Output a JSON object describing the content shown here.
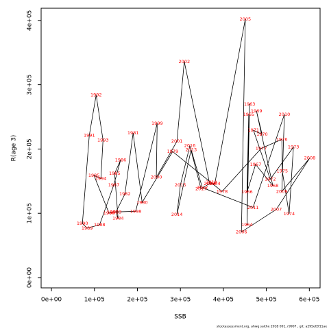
{
  "chart_data": {
    "type": "scatter",
    "xlabel": "SSB",
    "ylabel": "R(age 3)",
    "footnote": "stockassessment.org, ahwg saithe 2018 001, r9907 , git: a295ef2f11ae",
    "point_labels": [
      "1963",
      "1964",
      "1965",
      "1966",
      "1967",
      "1968",
      "1969",
      "1970",
      "1971",
      "1972",
      "1973",
      "1974",
      "1975",
      "1976",
      "1977",
      "1978",
      "1979",
      "1980",
      "1981",
      "1982",
      "1983",
      "1984",
      "1985",
      "1986",
      "1987",
      "1988",
      "1989",
      "1990",
      "1991",
      "1992",
      "1993",
      "1994",
      "1995",
      "1996",
      "1997",
      "1998",
      "1999",
      "2000",
      "2001",
      "2002",
      "2003",
      "2004",
      "2005",
      "2006",
      "2007",
      "2008",
      "2009",
      "2010",
      "2011",
      "2012",
      "2013",
      "2014",
      "2015",
      "2016",
      "2017",
      "2018"
    ],
    "x": [
      461000,
      455000,
      459000,
      455000,
      475000,
      515000,
      477000,
      490000,
      470000,
      509000,
      563000,
      553000,
      537000,
      536000,
      488000,
      397000,
      282000,
      211000,
      190000,
      171000,
      150000,
      155000,
      147000,
      161000,
      145000,
      112000,
      83000,
      72000,
      88000,
      104000,
      120000,
      115000,
      99000,
      134000,
      142000,
      196000,
      246000,
      244000,
      292000,
      309000,
      368000,
      380000,
      451000,
      442000,
      523000,
      601000,
      536000,
      542000,
      469000,
      351000,
      325000,
      292000,
      300000,
      322000,
      348000,
      372000
    ],
    "series": [
      {
        "color": "#ff0000",
        "values": [
          270000,
          82000,
          254000,
          133000,
          176000,
          143000,
          259000,
          223000,
          229000,
          153000,
          203000,
          99000,
          166000,
          215000,
          201000,
          134000,
          196000,
          117000,
          225000,
          130000,
          102000,
          92000,
          162000,
          183000,
          144000,
          82000,
          77000,
          84000,
          221000,
          284000,
          214000,
          154000,
          159000,
          100000,
          102000,
          103000,
          240000,
          156000,
          212000,
          336000,
          146000,
          146000,
          402000,
          71000,
          106000,
          186000,
          134000,
          254000,
          109000,
          140000,
          199000,
          98000,
          144000,
          205000,
          138000,
          148000
        ]
      }
    ],
    "xlim": [
      -24000,
      625000
    ],
    "ylim": [
      -16000,
      419000
    ],
    "xticks": [
      {
        "value": 0,
        "label": "0e+00"
      },
      {
        "value": 100000,
        "label": "1e+05"
      },
      {
        "value": 200000,
        "label": "2e+05"
      },
      {
        "value": 300000,
        "label": "3e+05"
      },
      {
        "value": 400000,
        "label": "4e+05"
      },
      {
        "value": 500000,
        "label": "5e+05"
      },
      {
        "value": 600000,
        "label": "6e+05"
      }
    ],
    "yticks": [
      {
        "value": 0,
        "label": "0e+00"
      },
      {
        "value": 100000,
        "label": "1e+05"
      },
      {
        "value": 200000,
        "label": "2e+05"
      },
      {
        "value": 300000,
        "label": "3e+05"
      },
      {
        "value": 400000,
        "label": "4e+05"
      }
    ]
  }
}
